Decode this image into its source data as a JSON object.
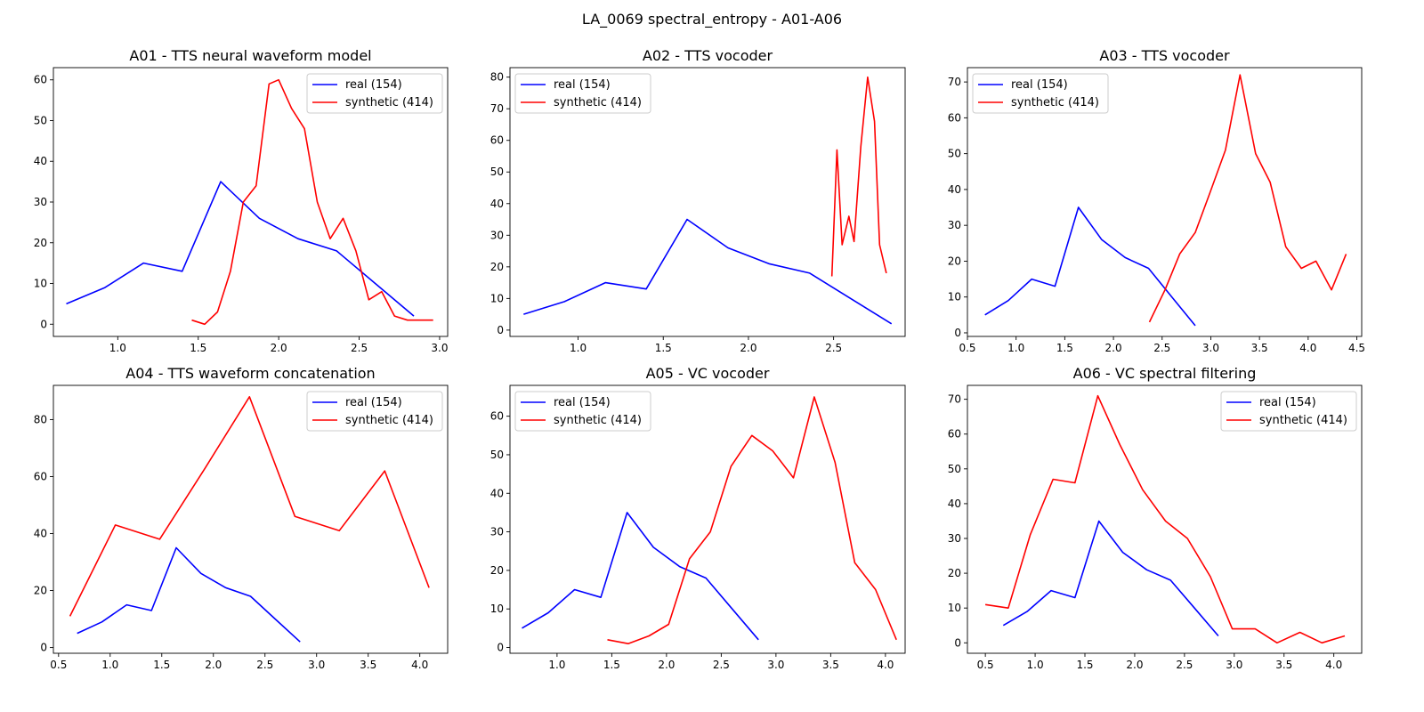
{
  "figure": {
    "suptitle": "LA_0069 spectral_entropy - A01-A06"
  },
  "colors": {
    "real": "#0000ff",
    "synthetic": "#ff0000"
  },
  "chart_data": [
    {
      "type": "line",
      "title": "A01 - TTS neural waveform model",
      "xlim": [
        0.6,
        3.05
      ],
      "ylim": [
        -3,
        63
      ],
      "xticks": [
        "1.0",
        "1.5",
        "2.0",
        "2.5",
        "3.0"
      ],
      "yticks": [
        "0",
        "10",
        "20",
        "30",
        "40",
        "50",
        "60"
      ],
      "legend": "top-right",
      "series": [
        {
          "name": "real (154)",
          "color": "#0000ff",
          "x": [
            0.68,
            0.92,
            1.16,
            1.4,
            1.64,
            1.88,
            2.12,
            2.36,
            2.6,
            2.84
          ],
          "y": [
            5,
            9,
            15,
            13,
            35,
            26,
            21,
            18,
            10,
            2
          ]
        },
        {
          "name": "synthetic (414)",
          "color": "#ff0000",
          "x": [
            1.46,
            1.54,
            1.62,
            1.7,
            1.78,
            1.86,
            1.94,
            2.0,
            2.08,
            2.16,
            2.24,
            2.32,
            2.4,
            2.48,
            2.56,
            2.64,
            2.72,
            2.8,
            2.88,
            2.96
          ],
          "y": [
            1,
            0,
            3,
            13,
            30,
            34,
            59,
            60,
            53,
            48,
            30,
            21,
            26,
            18,
            6,
            8,
            2,
            1,
            1,
            1
          ]
        }
      ]
    },
    {
      "type": "line",
      "title": "A02 - TTS vocoder",
      "xlim": [
        0.6,
        2.92
      ],
      "ylim": [
        -2,
        83
      ],
      "xticks": [
        "1.0",
        "1.5",
        "2.0",
        "2.5"
      ],
      "yticks": [
        "0",
        "10",
        "20",
        "30",
        "40",
        "50",
        "60",
        "70",
        "80"
      ],
      "legend": "top-left",
      "series": [
        {
          "name": "real (154)",
          "color": "#0000ff",
          "x": [
            0.68,
            0.92,
            1.16,
            1.4,
            1.64,
            1.88,
            2.12,
            2.36,
            2.6,
            2.84
          ],
          "y": [
            5,
            9,
            15,
            13,
            35,
            26,
            21,
            18,
            10,
            2
          ]
        },
        {
          "name": "synthetic (414)",
          "color": "#ff0000",
          "x": [
            2.49,
            2.52,
            2.55,
            2.59,
            2.62,
            2.66,
            2.7,
            2.74,
            2.77,
            2.81
          ],
          "y": [
            17,
            57,
            27,
            36,
            28,
            58,
            80,
            66,
            27,
            18
          ]
        }
      ]
    },
    {
      "type": "line",
      "title": "A03 - TTS vocoder",
      "xlim": [
        0.5,
        4.55
      ],
      "ylim": [
        -1,
        74
      ],
      "xticks": [
        "0.5",
        "1.0",
        "1.5",
        "2.0",
        "2.5",
        "3.0",
        "3.5",
        "4.0",
        "4.5"
      ],
      "yticks": [
        "0",
        "10",
        "20",
        "30",
        "40",
        "50",
        "60",
        "70"
      ],
      "legend": "top-left",
      "series": [
        {
          "name": "real (154)",
          "color": "#0000ff",
          "x": [
            0.68,
            0.92,
            1.16,
            1.4,
            1.64,
            1.88,
            2.12,
            2.36,
            2.6,
            2.84
          ],
          "y": [
            5,
            9,
            15,
            13,
            35,
            26,
            21,
            18,
            10,
            2
          ]
        },
        {
          "name": "synthetic (414)",
          "color": "#ff0000",
          "x": [
            2.37,
            2.53,
            2.68,
            2.84,
            2.99,
            3.15,
            3.3,
            3.46,
            3.61,
            3.77,
            3.93,
            4.08,
            4.24,
            4.39
          ],
          "y": [
            3,
            12,
            22,
            28,
            39,
            51,
            72,
            50,
            42,
            24,
            18,
            20,
            12,
            22
          ]
        }
      ]
    },
    {
      "type": "line",
      "title": "A04 - TTS waveform concatenation",
      "xlim": [
        0.45,
        4.27
      ],
      "ylim": [
        -2,
        92
      ],
      "xticks": [
        "0.5",
        "1.0",
        "1.5",
        "2.0",
        "2.5",
        "3.0",
        "3.5",
        "4.0"
      ],
      "yticks": [
        "0",
        "20",
        "40",
        "60",
        "80"
      ],
      "legend": "top-right",
      "series": [
        {
          "name": "real (154)",
          "color": "#0000ff",
          "x": [
            0.68,
            0.92,
            1.16,
            1.4,
            1.64,
            1.88,
            2.12,
            2.36,
            2.6,
            2.84
          ],
          "y": [
            5,
            9,
            15,
            13,
            35,
            26,
            21,
            18,
            10,
            2
          ]
        },
        {
          "name": "synthetic (414)",
          "color": "#ff0000",
          "x": [
            0.61,
            1.05,
            1.48,
            1.92,
            2.35,
            2.79,
            3.22,
            3.66,
            4.09
          ],
          "y": [
            11,
            43,
            38,
            63,
            88,
            46,
            41,
            62,
            21
          ]
        }
      ]
    },
    {
      "type": "line",
      "title": "A05 - VC vocoder",
      "xlim": [
        0.57,
        4.18
      ],
      "ylim": [
        -1.5,
        68
      ],
      "xticks": [
        "1.0",
        "1.5",
        "2.0",
        "2.5",
        "3.0",
        "3.5",
        "4.0"
      ],
      "yticks": [
        "0",
        "10",
        "20",
        "30",
        "40",
        "50",
        "60"
      ],
      "legend": "top-left",
      "series": [
        {
          "name": "real (154)",
          "color": "#0000ff",
          "x": [
            0.68,
            0.92,
            1.16,
            1.4,
            1.64,
            1.88,
            2.12,
            2.36,
            2.6,
            2.84
          ],
          "y": [
            5,
            9,
            15,
            13,
            35,
            26,
            21,
            18,
            10,
            2
          ]
        },
        {
          "name": "synthetic (414)",
          "color": "#ff0000",
          "x": [
            1.46,
            1.65,
            1.84,
            2.02,
            2.21,
            2.4,
            2.59,
            2.78,
            2.97,
            3.16,
            3.35,
            3.54,
            3.72,
            3.91,
            4.1
          ],
          "y": [
            2,
            1,
            3,
            6,
            23,
            30,
            47,
            55,
            51,
            44,
            65,
            48,
            22,
            15,
            2
          ]
        }
      ]
    },
    {
      "type": "line",
      "title": "A06 - VC spectral filtering",
      "xlim": [
        0.32,
        4.28
      ],
      "ylim": [
        -3,
        74
      ],
      "xticks": [
        "0.5",
        "1.0",
        "1.5",
        "2.0",
        "2.5",
        "3.0",
        "3.5",
        "4.0"
      ],
      "yticks": [
        "0",
        "10",
        "20",
        "30",
        "40",
        "50",
        "60",
        "70"
      ],
      "legend": "top-right",
      "series": [
        {
          "name": "real (154)",
          "color": "#0000ff",
          "x": [
            0.68,
            0.92,
            1.16,
            1.4,
            1.64,
            1.88,
            2.12,
            2.36,
            2.6,
            2.84
          ],
          "y": [
            5,
            9,
            15,
            13,
            35,
            26,
            21,
            18,
            10,
            2
          ]
        },
        {
          "name": "synthetic (414)",
          "color": "#ff0000",
          "x": [
            0.5,
            0.73,
            0.95,
            1.18,
            1.4,
            1.63,
            1.85,
            2.08,
            2.31,
            2.53,
            2.76,
            2.98,
            3.21,
            3.43,
            3.66,
            3.88,
            4.11
          ],
          "y": [
            11,
            10,
            31,
            47,
            46,
            71,
            57,
            44,
            35,
            30,
            19,
            4,
            4,
            0,
            3,
            0,
            2
          ]
        }
      ]
    }
  ]
}
